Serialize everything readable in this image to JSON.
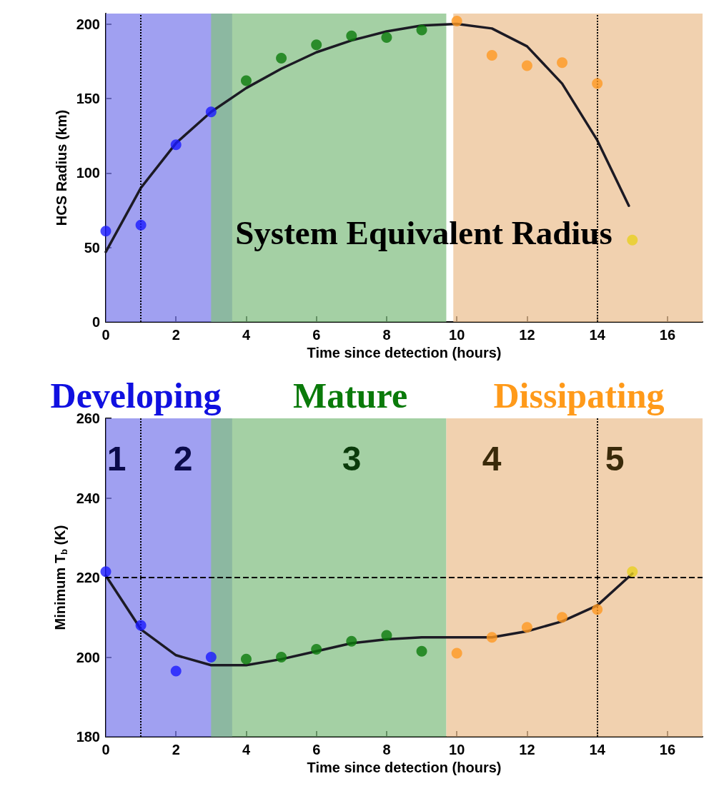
{
  "chart_data": [
    {
      "type": "scatter",
      "xlabel": "Time since detection (hours)",
      "ylabel": "HCS Radius (km)",
      "xlim": [
        0,
        17
      ],
      "xticks": [
        0,
        2,
        4,
        6,
        8,
        10,
        12,
        14,
        16
      ],
      "ylim": [
        0,
        207
      ],
      "yticks": [
        0,
        50,
        100,
        150,
        200
      ],
      "grid": false,
      "marker": "circle",
      "series": [
        {
          "x": [
            0,
            1,
            2,
            3,
            4,
            5,
            6,
            7,
            8,
            9,
            10,
            11,
            12,
            13,
            14,
            15
          ],
          "values": [
            61,
            65,
            119,
            141,
            162,
            177,
            186,
            192,
            191,
            196,
            202,
            179,
            172,
            174,
            160,
            55
          ],
          "colors": [
            "#1a1aff",
            "#1a1aff",
            "#1a1aff",
            "#1a1aff",
            "#0b7a0b",
            "#0b7a0b",
            "#0b7a0b",
            "#0b7a0b",
            "#0b7a0b",
            "#0b7a0b",
            "#ff9922",
            "#ff9922",
            "#ff9922",
            "#ff9922",
            "#ff9922",
            "#e8d020"
          ]
        },
        {
          "type": "line",
          "color": "#1c1a24",
          "marker": "none",
          "x": [
            0,
            1,
            2,
            3,
            4,
            5,
            6,
            7,
            8,
            9,
            10,
            11,
            12,
            13,
            14,
            14.9
          ],
          "values": [
            47,
            90,
            120,
            141,
            157,
            170,
            181,
            189,
            195,
            199,
            200,
            197,
            185,
            160,
            122,
            78
          ]
        }
      ],
      "bands": [
        {
          "axis": "x",
          "from": 0,
          "to": 3.6,
          "color": "#8080ec"
        },
        {
          "axis": "x",
          "from": 3,
          "to": 9.7,
          "color": "#86c086"
        },
        {
          "axis": "x",
          "from": 9.9,
          "to": 17,
          "color": "#ecc294"
        }
      ],
      "ref_lines": [
        {
          "axis": "x",
          "value": 1,
          "line_style": "dotted"
        },
        {
          "axis": "x",
          "value": 14,
          "line_style": "dotted"
        }
      ],
      "annotations": [
        "System Equivalent Radius"
      ]
    },
    {
      "type": "scatter",
      "xlabel": "Time since detection (hours)",
      "ylabel": "Minimum T$_{b}$ (K)",
      "xlim": [
        0,
        17
      ],
      "xticks": [
        0,
        2,
        4,
        6,
        8,
        10,
        12,
        14,
        16
      ],
      "ylim": [
        180,
        260
      ],
      "yticks": [
        180,
        200,
        220,
        240,
        260
      ],
      "grid": false,
      "marker": "circle",
      "series": [
        {
          "x": [
            0,
            1,
            2,
            3,
            4,
            5,
            6,
            7,
            8,
            9,
            10,
            11,
            12,
            13,
            14,
            15
          ],
          "values": [
            221.5,
            208,
            196.5,
            200,
            199.5,
            200,
            202,
            204,
            205.5,
            201.5,
            201,
            205,
            207.5,
            210,
            212,
            221.5
          ],
          "colors": [
            "#1a1aff",
            "#1a1aff",
            "#1a1aff",
            "#1a1aff",
            "#0b7a0b",
            "#0b7a0b",
            "#0b7a0b",
            "#0b7a0b",
            "#0b7a0b",
            "#0b7a0b",
            "#ff9922",
            "#ff9922",
            "#ff9922",
            "#ff9922",
            "#ff9922",
            "#e8d020"
          ]
        },
        {
          "type": "line",
          "color": "#1c1a24",
          "marker": "none",
          "x": [
            0,
            1,
            2,
            3,
            4,
            5,
            6,
            7,
            8,
            9,
            10,
            11,
            12,
            13,
            14,
            15
          ],
          "values": [
            220.5,
            207,
            200.5,
            198,
            198,
            199.5,
            201.5,
            203.5,
            204.5,
            205,
            205,
            205,
            206.5,
            209,
            213,
            221
          ]
        }
      ],
      "bands": [
        {
          "axis": "x",
          "from": 0,
          "to": 3.6,
          "color": "#8080ec"
        },
        {
          "axis": "x",
          "from": 3,
          "to": 9.7,
          "color": "#86c086"
        },
        {
          "axis": "x",
          "from": 9.7,
          "to": 17,
          "color": "#ecc294"
        }
      ],
      "ref_lines": [
        {
          "axis": "x",
          "value": 1,
          "line_style": "dotted"
        },
        {
          "axis": "x",
          "value": 14,
          "line_style": "dotted"
        },
        {
          "axis": "y",
          "value": 220,
          "line_style": "dashed"
        }
      ],
      "annotations": [
        "Developing",
        "Mature",
        "Dissipating",
        "1",
        "2",
        "3",
        "4",
        "5"
      ]
    }
  ]
}
